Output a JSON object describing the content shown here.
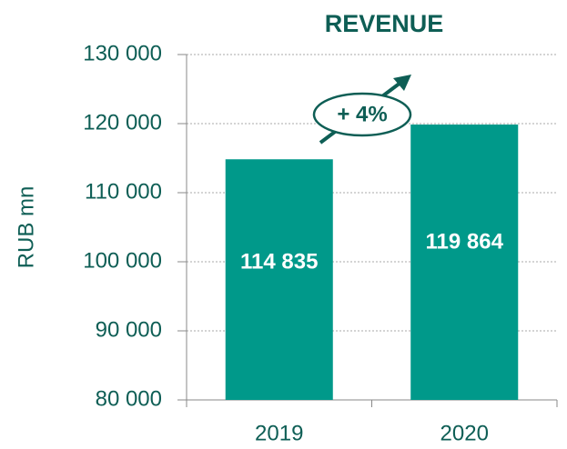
{
  "chart_data": {
    "type": "bar",
    "title": "REVENUE",
    "y_label": "RUB mn",
    "categories": [
      "2019",
      "2020"
    ],
    "values": [
      114835,
      119864
    ],
    "value_labels": [
      "114 835",
      "119 864"
    ],
    "color": "#00998a",
    "annotation": "+ 4%",
    "ylim": [
      80000,
      130000
    ],
    "yticks": [
      {
        "value": 80000,
        "label": "80 000"
      },
      {
        "value": 90000,
        "label": "90 000"
      },
      {
        "value": 100000,
        "label": "100 000"
      },
      {
        "value": 110000,
        "label": "110 000"
      },
      {
        "value": 120000,
        "label": "120 000"
      },
      {
        "value": 130000,
        "label": "130 000"
      }
    ],
    "grid": true
  }
}
